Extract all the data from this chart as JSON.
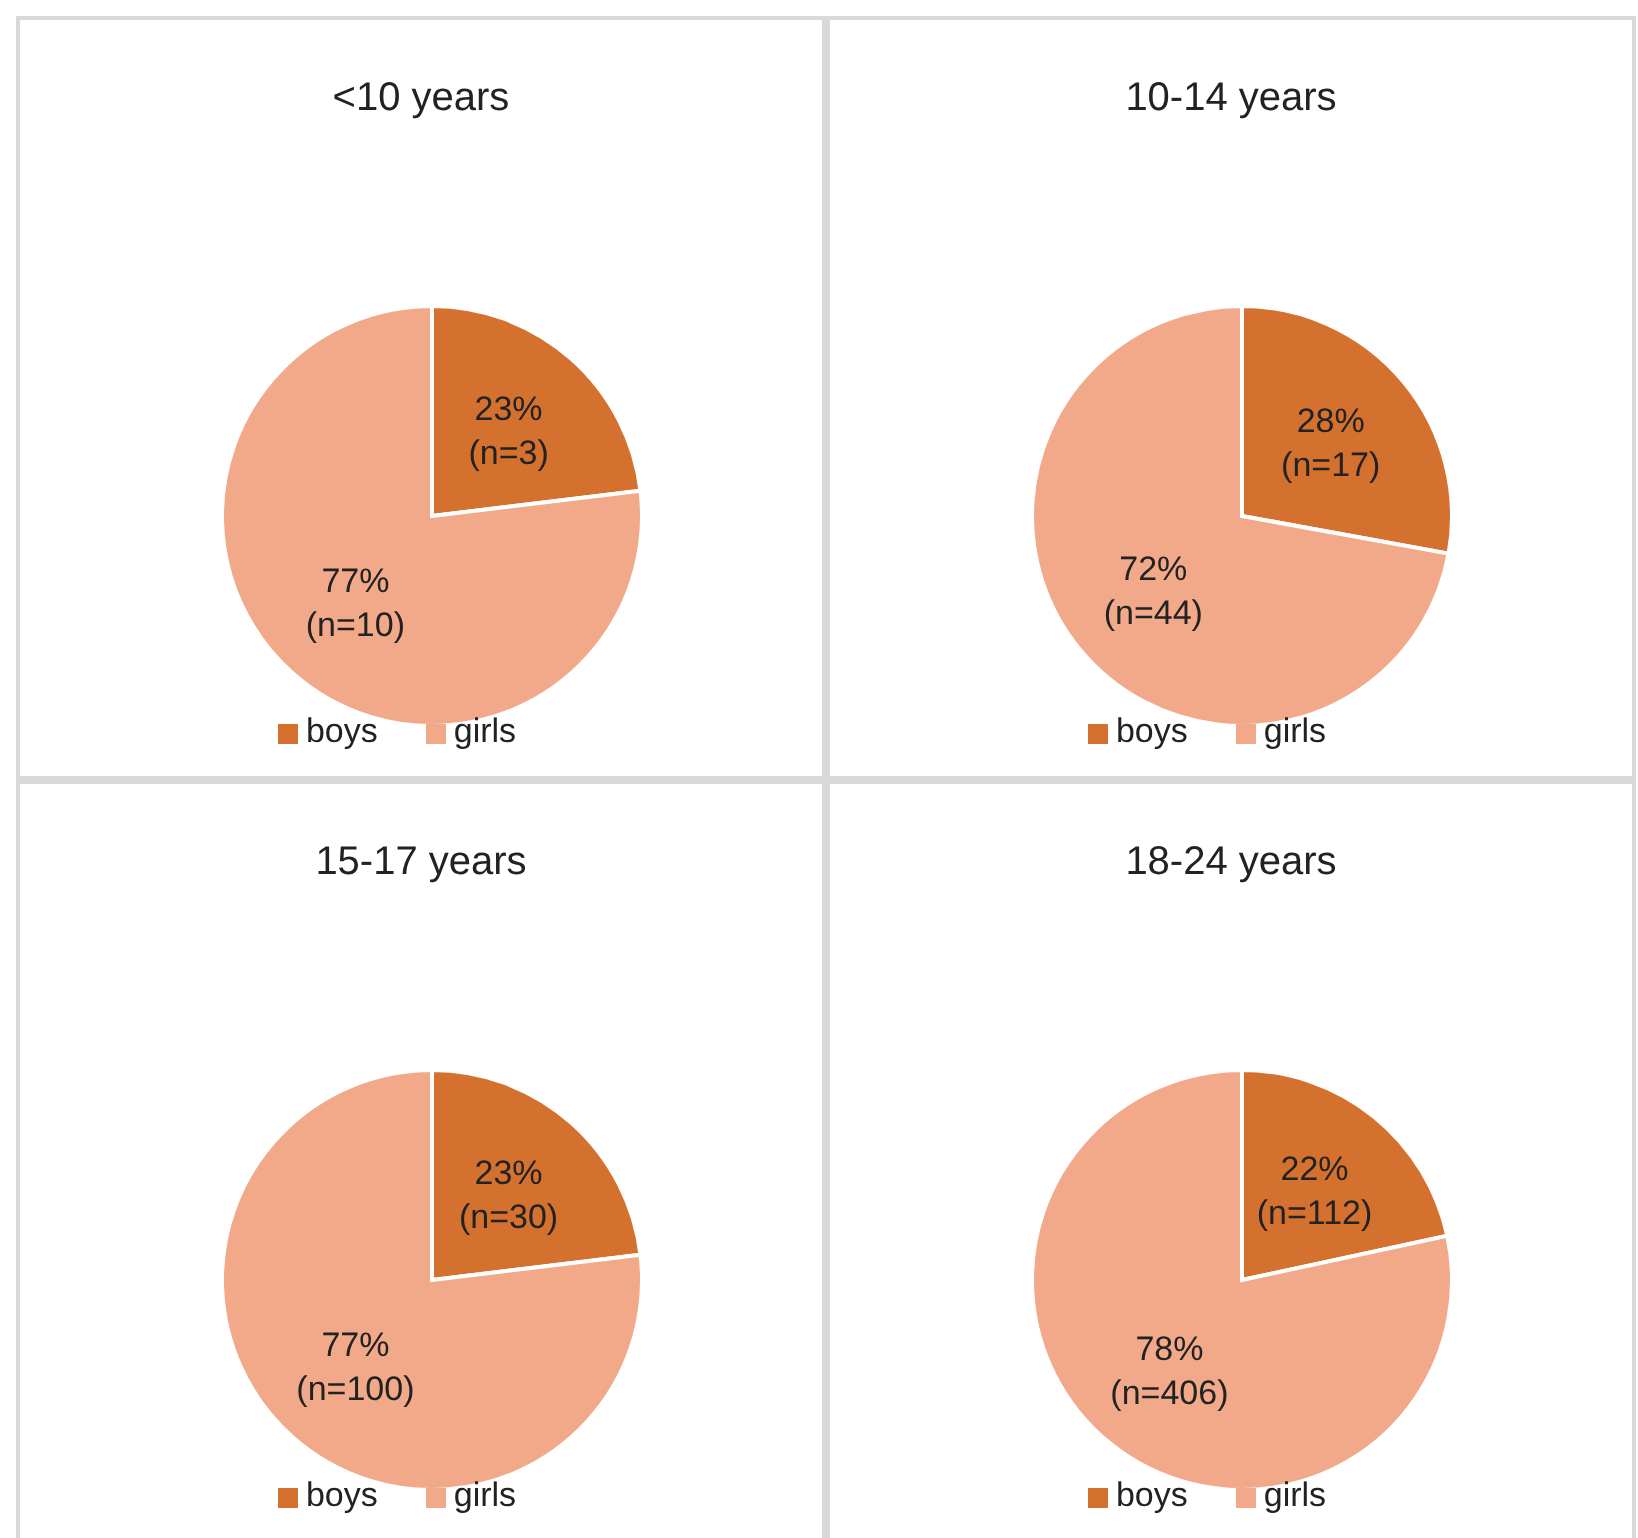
{
  "chart_data": [
    {
      "type": "pie",
      "title": "<10 years",
      "categories": [
        "boys",
        "girls"
      ],
      "values": [
        3,
        10
      ],
      "colors": [
        "#d5712f",
        "#f1a989"
      ],
      "value_labels": [
        "23%\n(n=3)",
        "77%\n(n=10)"
      ],
      "legend": "bottom"
    },
    {
      "type": "pie",
      "title": "10-14 years",
      "categories": [
        "boys",
        "girls"
      ],
      "values": [
        17,
        44
      ],
      "colors": [
        "#d5712f",
        "#f1a989"
      ],
      "value_labels": [
        "28%\n(n=17)",
        "72%\n(n=44)"
      ],
      "legend": "bottom"
    },
    {
      "type": "pie",
      "title": "15-17 years",
      "categories": [
        "boys",
        "girls"
      ],
      "values": [
        30,
        100
      ],
      "colors": [
        "#d5712f",
        "#f1a989"
      ],
      "value_labels": [
        "23%\n(n=30)",
        "77%\n(n=100)"
      ],
      "legend": "bottom"
    },
    {
      "type": "pie",
      "title": "18-24 years",
      "categories": [
        "boys",
        "girls"
      ],
      "values": [
        112,
        406
      ],
      "colors": [
        "#d5712f",
        "#f1a989"
      ],
      "value_labels": [
        "22%\n(n=112)",
        "78%\n(n=406)"
      ],
      "legend": "bottom"
    }
  ]
}
